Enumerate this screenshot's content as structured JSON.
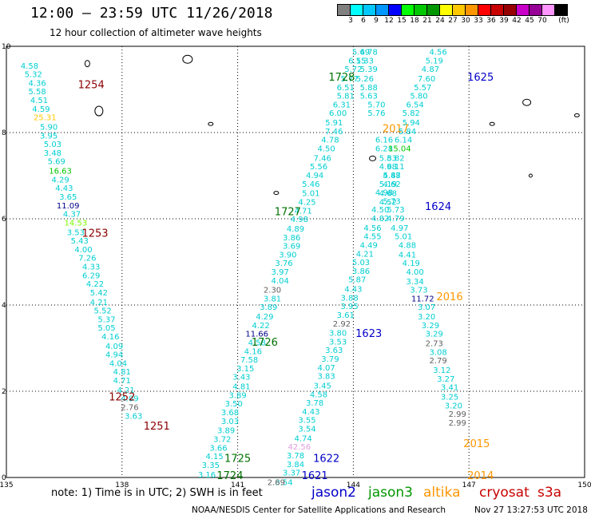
{
  "header": {
    "title": "12:00 – 23:59 UTC 11/26/2018",
    "subtitle": "12 hour collection of altimeter wave heights"
  },
  "legend": {
    "colors": [
      "#808080",
      "#00ffff",
      "#00c8ff",
      "#0096ff",
      "#0000ff",
      "#00ff00",
      "#00c800",
      "#009600",
      "#ffff00",
      "#ffc800",
      "#ff9600",
      "#ff0000",
      "#c80000",
      "#960000",
      "#c800c8",
      "#960096",
      "#ff96ff",
      "#000000"
    ],
    "labels": [
      "3",
      "6",
      "9",
      "12",
      "15",
      "18",
      "21",
      "24",
      "27",
      "30",
      "33",
      "36",
      "39",
      "42",
      "45",
      "70"
    ],
    "unit": "(ft)"
  },
  "axes": {
    "x_ticks": [
      135,
      138,
      141,
      144,
      147,
      150
    ],
    "y_ticks": [
      0,
      2,
      4,
      6,
      8,
      10
    ],
    "xlim": [
      135,
      150
    ],
    "ylim": [
      0,
      10
    ]
  },
  "tracks": [
    {
      "id": "1254",
      "color": "#8b0000",
      "label_pos": [
        137.2,
        9.12
      ],
      "points": [
        [
          135.6,
          9.54,
          "4.58"
        ],
        [
          135.7,
          9.34,
          "5.32"
        ],
        [
          135.8,
          9.14,
          "4.36"
        ],
        [
          135.8,
          8.94,
          "5.58"
        ],
        [
          135.85,
          8.74,
          "4.51"
        ],
        [
          135.9,
          8.54,
          "4.59"
        ],
        [
          136.0,
          8.34,
          "25.31",
          "#ffc800"
        ],
        [
          136.1,
          8.12,
          "5.90"
        ],
        [
          136.1,
          7.92,
          "3.95"
        ],
        [
          136.2,
          7.72,
          "5.03"
        ],
        [
          136.2,
          7.52,
          "3.48"
        ],
        [
          136.3,
          7.32,
          "5.69"
        ],
        [
          136.4,
          7.1,
          "16.63",
          "#00c800"
        ],
        [
          136.4,
          6.9,
          "4.29"
        ],
        [
          136.5,
          6.7,
          "4.43"
        ],
        [
          136.6,
          6.5,
          "3.65"
        ]
      ]
    },
    {
      "id": "1253",
      "color": "#8b0000",
      "label_pos": [
        137.3,
        5.68
      ],
      "points": [
        [
          136.6,
          6.3,
          "11.09",
          "#00008b"
        ],
        [
          136.7,
          6.1,
          "4.37"
        ],
        [
          136.8,
          5.9,
          "14.53",
          "#7cfc00"
        ],
        [
          136.8,
          5.68,
          "3.53"
        ],
        [
          136.9,
          5.48,
          "5.43"
        ],
        [
          137.0,
          5.28,
          "4.00"
        ],
        [
          137.1,
          5.08,
          "7.26"
        ],
        [
          137.2,
          4.88,
          "4.33"
        ]
      ]
    },
    {
      "id": "1252",
      "color": "#8b0000",
      "label_pos": [
        138.0,
        1.88
      ],
      "points": [
        [
          137.2,
          4.68,
          "6.29"
        ],
        [
          137.3,
          4.48,
          "4.22"
        ],
        [
          137.4,
          4.28,
          "5.42"
        ],
        [
          137.4,
          4.06,
          "4.21"
        ],
        [
          137.5,
          3.86,
          "5.52"
        ],
        [
          137.6,
          3.66,
          "5.37"
        ],
        [
          137.6,
          3.46,
          "5.05"
        ],
        [
          137.7,
          3.26,
          "4.16"
        ],
        [
          137.8,
          3.04,
          "4.09"
        ],
        [
          137.8,
          2.84,
          "4.94"
        ],
        [
          137.9,
          2.64,
          "4.04"
        ],
        [
          138.0,
          2.44,
          "4.81"
        ],
        [
          138.0,
          2.24,
          "4.71"
        ],
        [
          138.1,
          2.02,
          "4.21"
        ],
        [
          138.2,
          1.82,
          "4.09"
        ],
        [
          138.2,
          1.62,
          "2.76",
          "#606060"
        ],
        [
          138.3,
          1.42,
          "3.63"
        ]
      ]
    },
    {
      "id": "1251",
      "color": "#8b0000",
      "label_pos": [
        138.9,
        1.2
      ],
      "points": []
    },
    {
      "id": "1728",
      "color": "#007000",
      "label_pos": [
        143.7,
        9.3
      ],
      "points": [
        [
          144.2,
          9.86,
          "5.69"
        ],
        [
          144.1,
          9.66,
          "6.15"
        ],
        [
          144.0,
          9.46,
          "5.72"
        ],
        [
          143.9,
          9.24,
          "5.77"
        ],
        [
          143.8,
          9.04,
          "6.51"
        ],
        [
          143.8,
          8.84,
          "5.81"
        ],
        [
          143.7,
          8.64,
          "6.31"
        ],
        [
          143.6,
          8.44,
          "6.00"
        ],
        [
          143.5,
          8.22,
          "5.91"
        ],
        [
          143.5,
          8.02,
          "7.46"
        ],
        [
          143.4,
          7.82,
          "4.78"
        ],
        [
          143.3,
          7.62,
          "4.50"
        ],
        [
          143.2,
          7.4,
          "7.46"
        ],
        [
          143.1,
          7.2,
          "5.56"
        ],
        [
          143.0,
          7.0,
          "4.94"
        ],
        [
          142.9,
          6.8,
          "5.46"
        ],
        [
          142.9,
          6.58,
          "5.01"
        ],
        [
          142.8,
          6.38,
          "4.25"
        ],
        [
          142.7,
          6.18,
          "4.71"
        ],
        [
          142.6,
          5.98,
          "4.98"
        ],
        [
          142.5,
          5.76,
          "4.89"
        ],
        [
          142.4,
          5.56,
          "3.86"
        ],
        [
          142.4,
          5.36,
          "3.69"
        ],
        [
          142.3,
          5.16,
          "3.90"
        ],
        [
          142.2,
          4.96,
          "3.76"
        ],
        [
          142.1,
          4.76,
          "3.97"
        ],
        [
          142.1,
          4.56,
          "4.04"
        ],
        [
          141.9,
          4.34,
          "2.30",
          "#606060"
        ],
        [
          141.9,
          4.14,
          "3.81"
        ],
        [
          141.8,
          3.94,
          "3.89"
        ],
        [
          141.7,
          3.72,
          "4.29"
        ],
        [
          141.6,
          3.52,
          "4.22"
        ],
        [
          141.5,
          3.32,
          "11.66",
          "#00008b"
        ],
        [
          141.5,
          3.12,
          "4.58"
        ],
        [
          141.4,
          2.92,
          "4.16"
        ],
        [
          141.3,
          2.72,
          "7.58"
        ],
        [
          141.2,
          2.52,
          "3.15"
        ],
        [
          141.1,
          2.32,
          "3.43"
        ],
        [
          141.1,
          2.1,
          "4.81"
        ],
        [
          141.0,
          1.9,
          "3.89"
        ],
        [
          140.9,
          1.7,
          "3.50"
        ],
        [
          140.8,
          1.5,
          "3.68"
        ],
        [
          140.8,
          1.3,
          "3.03"
        ],
        [
          140.7,
          1.08,
          "3.89"
        ],
        [
          140.6,
          0.88,
          "3.72"
        ],
        [
          140.5,
          0.68,
          "3.66"
        ],
        [
          140.4,
          0.48,
          "4.15"
        ],
        [
          140.3,
          0.28,
          "3.35"
        ],
        [
          140.2,
          0.06,
          "3.16"
        ]
      ]
    },
    {
      "id": "1727",
      "color": "#007000",
      "label_pos": [
        142.3,
        6.18
      ],
      "points": []
    },
    {
      "id": "1726",
      "color": "#007000",
      "label_pos": [
        141.7,
        3.15
      ],
      "points": []
    },
    {
      "id": "1725",
      "color": "#007000",
      "label_pos": [
        141.0,
        0.45
      ],
      "points": []
    },
    {
      "id": "1724",
      "color": "#007000",
      "label_pos": [
        140.8,
        0.06
      ],
      "points": []
    },
    {
      "id": "2017",
      "color": "#ff9600",
      "label_pos": [
        145.1,
        8.1
      ],
      "points": [
        [
          144.4,
          9.86,
          "4.78"
        ],
        [
          144.3,
          9.66,
          "5.33"
        ],
        [
          144.4,
          9.46,
          "5.39"
        ],
        [
          144.3,
          9.24,
          "5.26"
        ],
        [
          144.4,
          9.04,
          "5.88"
        ],
        [
          144.4,
          8.84,
          "5.63"
        ],
        [
          144.6,
          8.64,
          "5.70"
        ],
        [
          144.6,
          8.44,
          "5.76"
        ],
        [
          144.8,
          7.82,
          "6.16"
        ],
        [
          144.8,
          7.62,
          "6.28"
        ],
        [
          144.9,
          7.4,
          "5.83"
        ],
        [
          144.9,
          7.2,
          "4.98"
        ],
        [
          145.0,
          7.0,
          "4.88"
        ],
        [
          145.0,
          6.8,
          "4.62"
        ],
        [
          144.9,
          6.58,
          "4.68"
        ],
        [
          144.9,
          6.38,
          "4.52"
        ]
      ]
    },
    {
      "id": "1625",
      "color": "#0000c8",
      "label_pos": [
        147.3,
        9.3
      ],
      "points": [
        [
          146.2,
          9.86,
          "4.56"
        ],
        [
          146.1,
          9.66,
          "5.19"
        ],
        [
          146.0,
          9.46,
          "4.87"
        ],
        [
          145.9,
          9.24,
          "7.60"
        ],
        [
          145.8,
          9.04,
          "5.57"
        ],
        [
          145.7,
          8.84,
          "5.80"
        ],
        [
          145.6,
          8.64,
          "6.54"
        ],
        [
          145.5,
          8.44,
          "5.82"
        ],
        [
          145.5,
          8.22,
          "5.94"
        ],
        [
          145.4,
          8.02,
          "5.84"
        ],
        [
          145.3,
          7.82,
          "6.14"
        ],
        [
          145.2,
          7.62,
          "15.04",
          "#00c800"
        ],
        [
          145.1,
          7.4,
          "5.82"
        ],
        [
          145.1,
          7.2,
          "6.11"
        ],
        [
          145.0,
          7.0,
          "5.47"
        ],
        [
          144.9,
          6.8,
          "5.19"
        ],
        [
          144.8,
          6.6,
          "4.98"
        ]
      ]
    },
    {
      "id": "1624",
      "color": "#0000c8",
      "label_pos": [
        146.2,
        6.3
      ],
      "points": [
        [
          144.7,
          6.2,
          "4.50"
        ],
        [
          144.7,
          6.0,
          "4.82"
        ],
        [
          144.5,
          5.78,
          "4.56"
        ],
        [
          144.5,
          5.58,
          "4.55"
        ],
        [
          144.4,
          5.38,
          "4.49"
        ],
        [
          144.3,
          5.18,
          "4.21"
        ],
        [
          144.2,
          4.98,
          "5.03"
        ],
        [
          144.2,
          4.78,
          "3.86"
        ],
        [
          144.1,
          4.58,
          "5.87"
        ],
        [
          144.0,
          4.36,
          "4.43"
        ],
        [
          143.9,
          4.16,
          "3.88"
        ],
        [
          143.9,
          3.96,
          "3.95"
        ],
        [
          143.8,
          3.76,
          "3.61"
        ],
        [
          143.7,
          3.56,
          "2.92",
          "#606060"
        ],
        [
          143.6,
          3.34,
          "3.80"
        ],
        [
          143.6,
          3.14,
          "3.53"
        ],
        [
          143.5,
          2.94,
          "3.63"
        ],
        [
          143.4,
          2.74,
          "3.79"
        ],
        [
          143.3,
          2.54,
          "4.07"
        ],
        [
          143.3,
          2.34,
          "3.83"
        ],
        [
          143.2,
          2.12,
          "3.45"
        ],
        [
          143.1,
          1.92,
          "4.58"
        ],
        [
          143.0,
          1.72,
          "3.78"
        ],
        [
          142.9,
          1.52,
          "4.43"
        ],
        [
          142.8,
          1.32,
          "3.55"
        ],
        [
          142.8,
          1.12,
          "3.54"
        ],
        [
          142.7,
          0.9,
          "4.74"
        ],
        [
          142.6,
          0.7,
          "42.56",
          "#dda0dd"
        ],
        [
          142.5,
          0.5,
          "3.78"
        ],
        [
          142.5,
          0.3,
          "3.84"
        ],
        [
          142.4,
          0.1,
          "3.37"
        ],
        [
          142.2,
          -0.12,
          "3.54"
        ]
      ]
    },
    {
      "id": "1623",
      "color": "#0000c8",
      "label_pos": [
        144.4,
        3.35
      ],
      "points": []
    },
    {
      "id": "1622",
      "color": "#0000c8",
      "label_pos": [
        143.3,
        0.45
      ],
      "points": []
    },
    {
      "id": "1621",
      "color": "#0000c8",
      "label_pos": [
        143.0,
        0.06
      ],
      "points": []
    },
    {
      "id": "2016",
      "color": "#ff9600",
      "label_pos": [
        146.5,
        4.2
      ],
      "points": [
        [
          145.0,
          6.4,
          "5.73"
        ],
        [
          145.1,
          6.2,
          "5.73"
        ],
        [
          145.1,
          6.0,
          "4.79"
        ],
        [
          145.2,
          5.78,
          "4.97"
        ],
        [
          145.3,
          5.58,
          "5.01"
        ],
        [
          145.4,
          5.38,
          "4.88"
        ],
        [
          145.4,
          5.16,
          "4.41"
        ],
        [
          145.5,
          4.96,
          "4.19"
        ],
        [
          145.6,
          4.76,
          "4.00"
        ],
        [
          145.6,
          4.54,
          "3.34"
        ],
        [
          145.7,
          4.34,
          "3.73"
        ],
        [
          145.8,
          4.14,
          "11.72",
          "#00008b"
        ],
        [
          145.9,
          3.94,
          "3.07"
        ],
        [
          145.9,
          3.72,
          "3.20"
        ],
        [
          146.0,
          3.52,
          "3.29"
        ],
        [
          146.1,
          3.32,
          "3.29"
        ],
        [
          146.1,
          3.1,
          "2.73",
          "#606060"
        ],
        [
          146.2,
          2.9,
          "3.08"
        ],
        [
          146.2,
          2.7,
          "2.79",
          "#606060"
        ],
        [
          146.3,
          2.48,
          "3.12"
        ],
        [
          146.4,
          2.28,
          "3.27"
        ],
        [
          146.5,
          2.08,
          "3.41"
        ],
        [
          146.5,
          1.86,
          "3.25"
        ],
        [
          146.6,
          1.66,
          "3.20"
        ],
        [
          146.7,
          1.46,
          "2.99",
          "#606060"
        ],
        [
          146.7,
          1.26,
          "2.99",
          "#606060"
        ]
      ]
    },
    {
      "id": "2015",
      "color": "#ff9600",
      "label_pos": [
        147.2,
        0.8
      ],
      "points": []
    },
    {
      "id": "2014",
      "color": "#ff9600",
      "label_pos": [
        147.3,
        0.06
      ],
      "points": []
    },
    {
      "id": "extra",
      "color": "#606060",
      "label_pos": null,
      "points": [
        [
          142.0,
          -0.12,
          "2.69",
          "#606060"
        ]
      ]
    }
  ],
  "footer": {
    "note": "note:  1) Time is in UTC;  2) SWH is in feet",
    "satellites": [
      {
        "name": "jason2",
        "color": "#0000c8"
      },
      {
        "name": "jason3",
        "color": "#009600"
      },
      {
        "name": "altika",
        "color": "#ff9600"
      },
      {
        "name": "cryosat",
        "color": "#c80000"
      },
      {
        "name": "s3a",
        "color": "#c80000"
      }
    ],
    "credit": "NOAA/NESDIS Center for Satellite Applications and Research",
    "timestamp": "Nov 27 13:27:53 UTC 2018"
  }
}
